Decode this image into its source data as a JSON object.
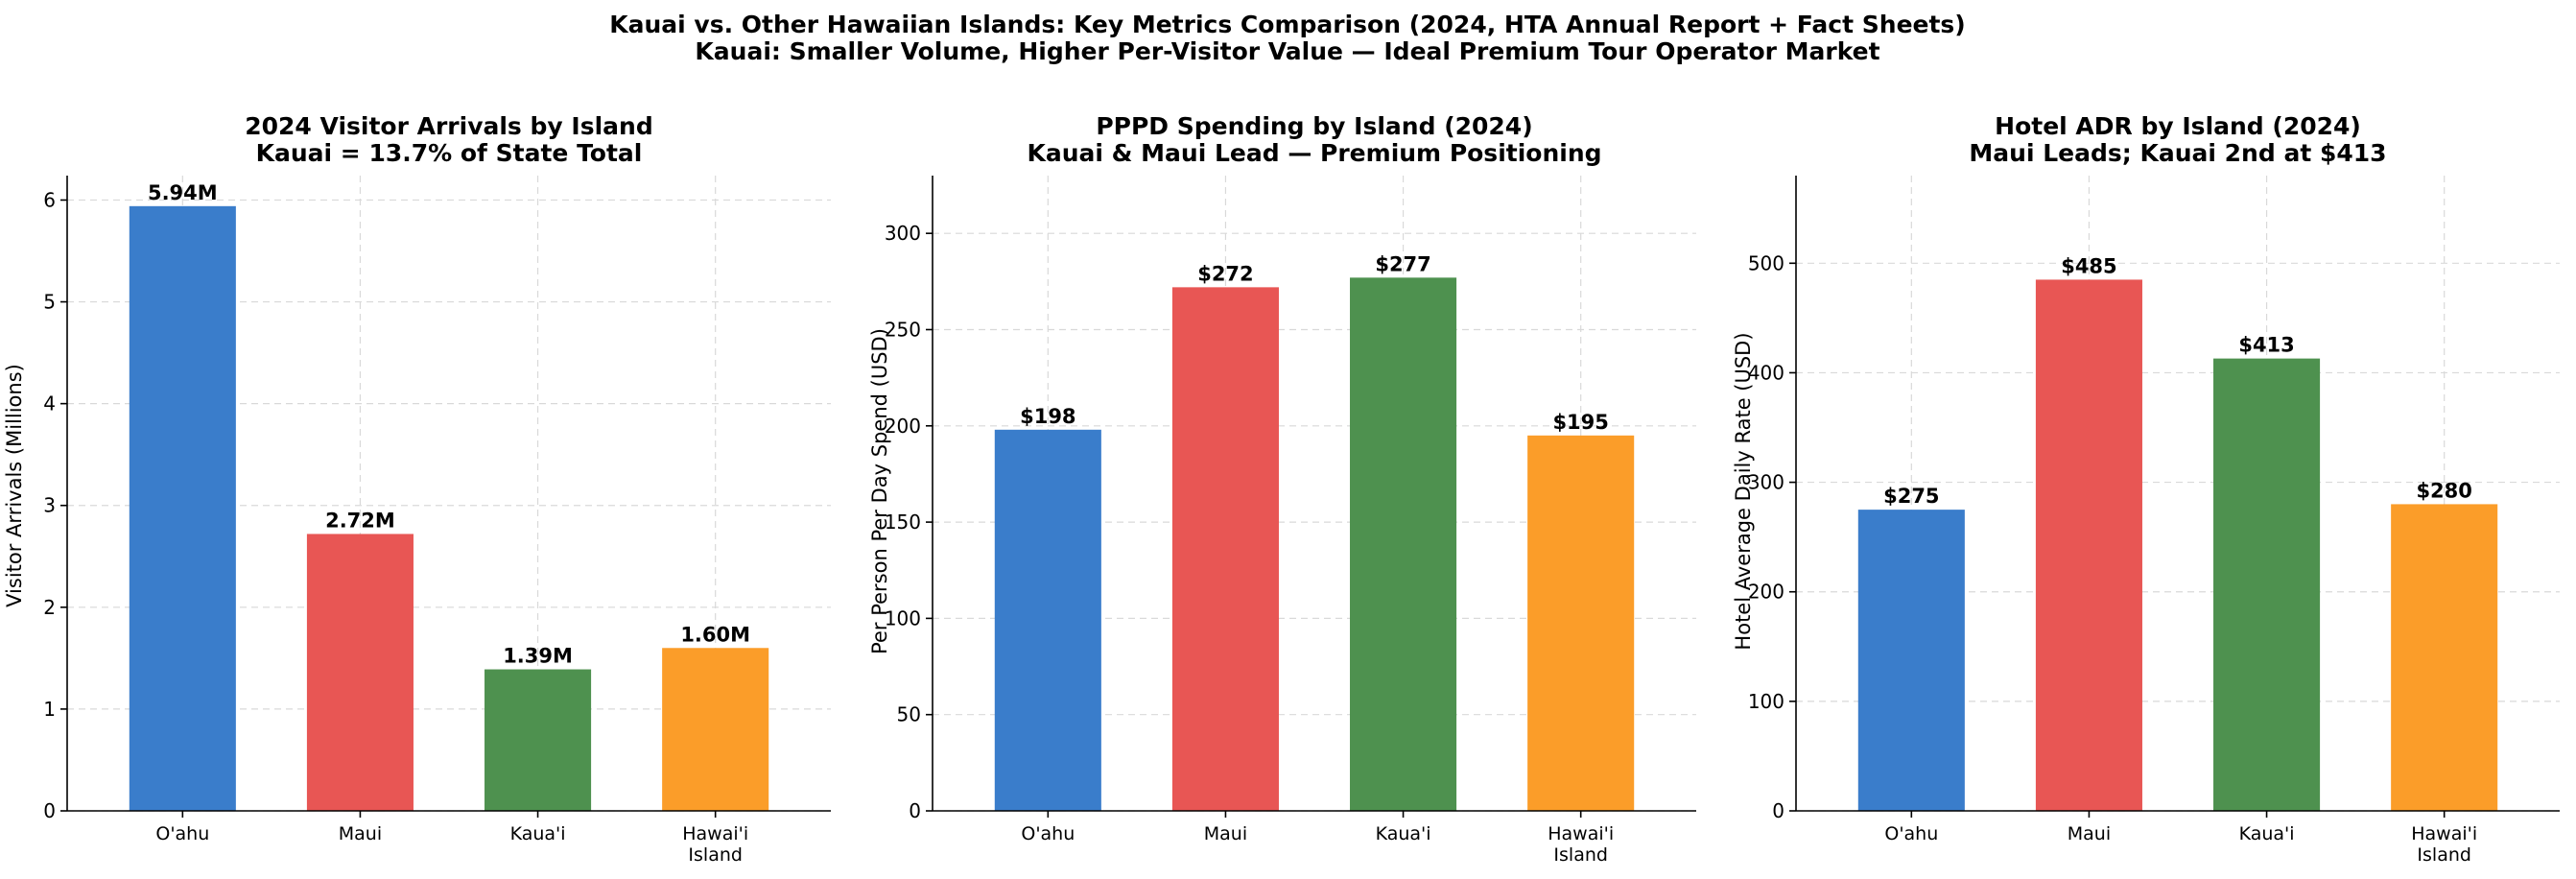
{
  "figure": {
    "title_line1": "Kauai vs. Other Hawaiian Islands: Key Metrics Comparison (2024, HTA Annual Report + Fact Sheets)",
    "title_line2": "Kauai: Smaller Volume, Higher Per-Visitor Value — Ideal Premium Tour Operator Market"
  },
  "chart_data": [
    {
      "type": "bar",
      "title_line1": "2024 Visitor Arrivals by Island",
      "title_line2": "Kauai = 13.7% of State Total",
      "ylabel": "Visitor Arrivals (Millions)",
      "categories": [
        [
          "O'ahu"
        ],
        [
          "Maui"
        ],
        [
          "Kaua'i"
        ],
        [
          "Hawai'i",
          "Island"
        ]
      ],
      "values": [
        5.94,
        2.72,
        1.39,
        1.6
      ],
      "labels": [
        "5.94M",
        "2.72M",
        "1.39M",
        "1.60M"
      ],
      "colors": [
        "#3a7dcb",
        "#e85654",
        "#4e914f",
        "#fb9d29"
      ],
      "ylim": [
        0,
        6.24
      ],
      "yticks": [
        0,
        1,
        2,
        3,
        4,
        5,
        6
      ],
      "grid": true
    },
    {
      "type": "bar",
      "title_line1": "PPPD Spending by Island (2024)",
      "title_line2": "Kauai & Maui Lead — Premium Positioning",
      "ylabel": "Per Person Per Day Spend (USD)",
      "categories": [
        [
          "O'ahu"
        ],
        [
          "Maui"
        ],
        [
          "Kaua'i"
        ],
        [
          "Hawai'i",
          "Island"
        ]
      ],
      "values": [
        198,
        272,
        277,
        195
      ],
      "labels": [
        "$198",
        "$272",
        "$277",
        "$195"
      ],
      "colors": [
        "#3a7dcb",
        "#e85654",
        "#4e914f",
        "#fb9d29"
      ],
      "ylim": [
        0,
        330
      ],
      "yticks": [
        0,
        50,
        100,
        150,
        200,
        250,
        300
      ],
      "grid": true
    },
    {
      "type": "bar",
      "title_line1": "Hotel ADR by Island (2024)",
      "title_line2": "Maui Leads; Kauai 2nd at $413",
      "ylabel": "Hotel Average Daily Rate (USD)",
      "categories": [
        [
          "O'ahu"
        ],
        [
          "Maui"
        ],
        [
          "Kaua'i"
        ],
        [
          "Hawai'i",
          "Island"
        ]
      ],
      "values": [
        275,
        485,
        413,
        280
      ],
      "labels": [
        "$275",
        "$485",
        "$413",
        "$280"
      ],
      "colors": [
        "#3a7dcb",
        "#e85654",
        "#4e914f",
        "#fb9d29"
      ],
      "ylim": [
        0,
        580
      ],
      "yticks": [
        0,
        100,
        200,
        300,
        400,
        500
      ],
      "grid": true
    }
  ]
}
